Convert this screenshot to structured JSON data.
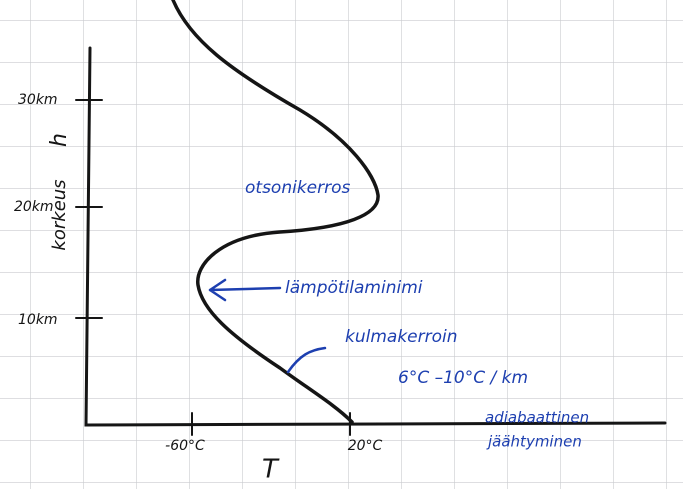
{
  "axis": {
    "y_label": "korkeus",
    "y_symbol": "h",
    "x_symbol": "T",
    "y_ticks": [
      "30km",
      "20km",
      "10km"
    ],
    "x_ticks": [
      "-60°C",
      "20°C"
    ]
  },
  "annotations": {
    "ozone": "otsonikerros",
    "minimum": "lämpötilaminimi",
    "slope_title": "kulmakerroin",
    "slope_value": "6°C –10°C / km",
    "adiabatic_1": "adiabaattinen",
    "adiabatic_2": "jäähtyminen"
  }
}
